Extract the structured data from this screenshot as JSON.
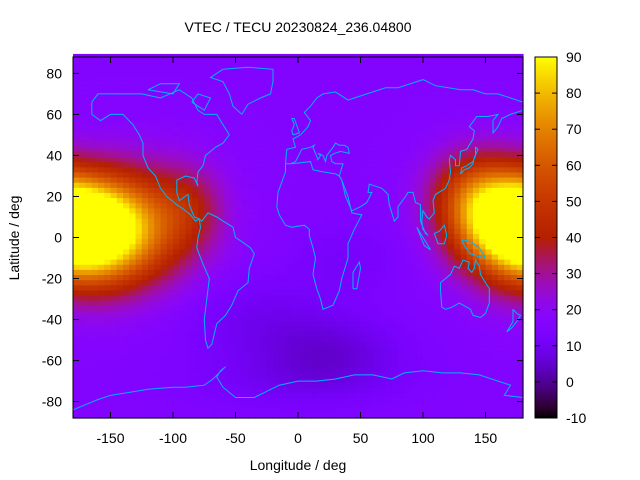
{
  "chart_data": {
    "type": "heatmap",
    "title": "VTEC / TECU 20230824_236.04800",
    "xlabel": "Longitude / deg",
    "ylabel": "Latitude / deg",
    "xlim": [
      -180,
      180
    ],
    "ylim": [
      -88,
      88
    ],
    "xticks": [
      -150,
      -100,
      -50,
      0,
      50,
      100,
      150
    ],
    "yticks": [
      -80,
      -60,
      -40,
      -20,
      0,
      20,
      40,
      60,
      80
    ],
    "colorbar": {
      "range": [
        -10,
        90
      ],
      "ticks": [
        -10,
        0,
        10,
        20,
        30,
        40,
        50,
        60,
        70,
        80,
        90
      ]
    },
    "grid": false,
    "overlay": "coastlines",
    "field": {
      "background_tecu": 16,
      "anomalies": [
        {
          "lon": -165,
          "lat": 2,
          "peak_tecu": 72,
          "sigma_lon": 35,
          "sigma_lat": 18
        },
        {
          "lon": -120,
          "lat": 8,
          "peak_tecu": 24,
          "sigma_lon": 35,
          "sigma_lat": 20
        },
        {
          "lon": -85,
          "lat": 15,
          "peak_tecu": 12,
          "sigma_lon": 18,
          "sigma_lat": 14
        },
        {
          "lon": 170,
          "lat": 8,
          "peak_tecu": 56,
          "sigma_lon": 30,
          "sigma_lat": 16
        },
        {
          "lon": 140,
          "lat": 22,
          "peak_tecu": 28,
          "sigma_lon": 25,
          "sigma_lat": 15
        },
        {
          "lon": -30,
          "lat": -40,
          "peak_tecu": -6,
          "sigma_lon": 45,
          "sigma_lat": 15
        },
        {
          "lon": 30,
          "lat": -55,
          "peak_tecu": -8,
          "sigma_lon": 40,
          "sigma_lat": 12
        },
        {
          "lon": 0,
          "lat": -70,
          "peak_tecu": -5,
          "sigma_lon": 60,
          "sigma_lat": 10
        },
        {
          "lon": 40,
          "lat": -10,
          "peak_tecu": -4,
          "sigma_lon": 30,
          "sigma_lat": 12
        }
      ]
    }
  }
}
